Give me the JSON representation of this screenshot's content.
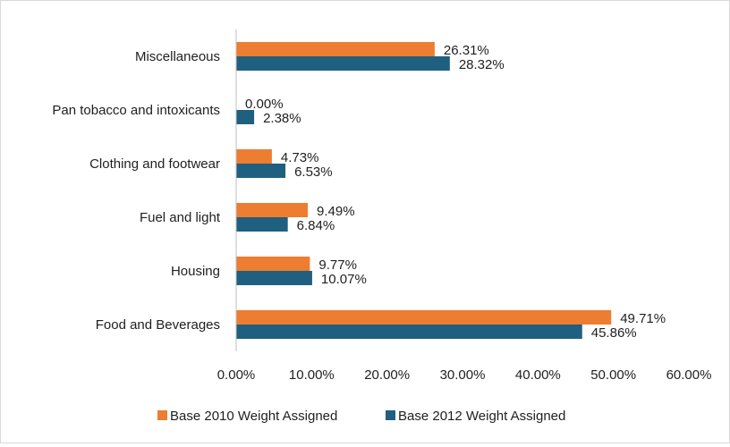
{
  "chart_data": {
    "type": "bar",
    "orientation": "horizontal",
    "title": "",
    "xlabel": "",
    "ylabel": "",
    "categories": [
      "Food and Beverages",
      "Housing",
      "Fuel and light",
      "Clothing and footwear",
      "Pan tobacco and intoxicants",
      "Miscellaneous"
    ],
    "series": [
      {
        "name": "Base 2010 Weight Assigned",
        "color": "#ed7d31",
        "values": [
          49.71,
          9.77,
          9.49,
          4.73,
          0.0,
          26.31
        ],
        "labels": [
          "49.71%",
          "9.77%",
          "9.49%",
          "4.73%",
          "0.00%",
          "26.31%"
        ]
      },
      {
        "name": "Base 2012 Weight Assigned",
        "color": "#1f5f7f",
        "values": [
          45.86,
          10.07,
          6.84,
          6.53,
          2.38,
          28.32
        ],
        "labels": [
          "45.86%",
          "10.07%",
          "6.84%",
          "6.53%",
          "2.38%",
          "28.32%"
        ]
      }
    ],
    "xlim": [
      0,
      60
    ],
    "xticks": [
      0,
      10,
      20,
      30,
      40,
      50,
      60
    ],
    "xtick_labels": [
      "0.00%",
      "10.00%",
      "20.00%",
      "30.00%",
      "40.00%",
      "50.00%",
      "60.00%"
    ],
    "grid": false,
    "legend_position": "bottom"
  }
}
